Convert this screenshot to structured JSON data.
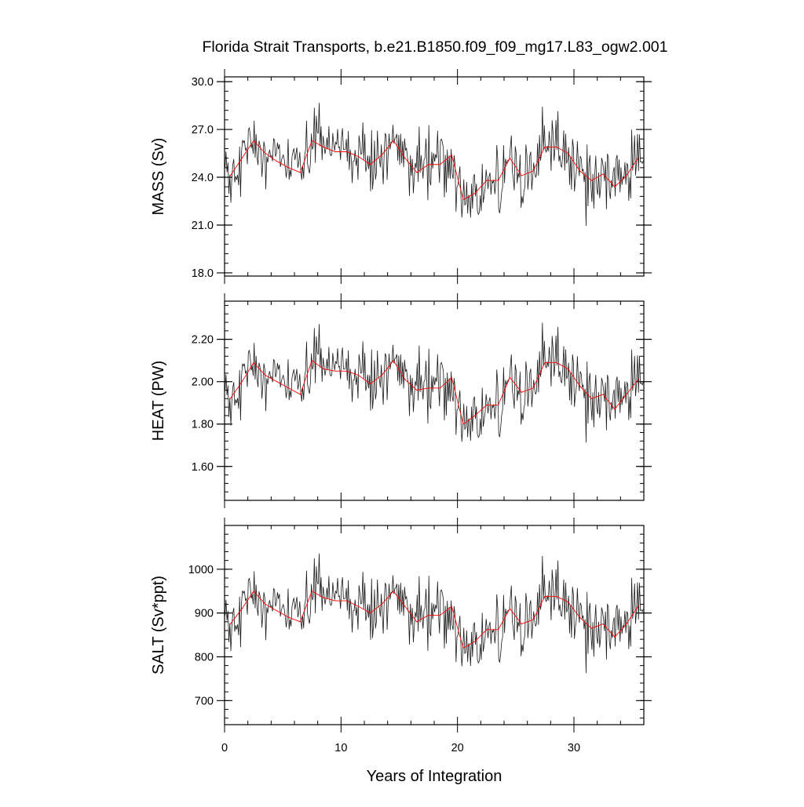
{
  "chart_data": {
    "type": "line",
    "title": "Florida Strait Transports, b.e21.B1850.f09_f09_mg17.L83_ogw2.001",
    "xlabel": "Years of Integration",
    "xlim": [
      0,
      36
    ],
    "xticks": [
      "0",
      "10",
      "20",
      "30"
    ],
    "series_description_colors": {
      "monthly": "#1a1a1a",
      "annual": "#ff0000"
    },
    "panels": [
      {
        "key": "mass",
        "ylabel": "MASS (Sv)",
        "ylim": [
          17.8,
          30.3
        ],
        "yticks": [
          "30.0",
          "27.0",
          "24.0",
          "21.0",
          "18.0"
        ],
        "annual_x": [
          0.5,
          1.5,
          2.5,
          3.5,
          4.5,
          5.5,
          6.5,
          7.5,
          8.5,
          9.5,
          10.5,
          11.5,
          12.5,
          13.5,
          14.5,
          15.5,
          16.5,
          17.5,
          18.5,
          19.5,
          20.5,
          21.5,
          22.5,
          23.5,
          24.5,
          25.5,
          26.5,
          27.5,
          28.5,
          29.5,
          30.5,
          31.5,
          32.5,
          33.5,
          34.5,
          35.5
        ],
        "annual_values": [
          24.1,
          25.2,
          26.3,
          25.5,
          25.0,
          24.6,
          24.3,
          26.3,
          25.9,
          25.6,
          25.6,
          25.3,
          24.8,
          25.4,
          26.3,
          25.2,
          24.3,
          24.8,
          24.8,
          25.4,
          22.6,
          23.0,
          23.8,
          23.8,
          25.2,
          24.1,
          24.4,
          25.9,
          25.9,
          25.5,
          24.4,
          23.8,
          24.2,
          23.4,
          24.1,
          25.2
        ]
      },
      {
        "key": "heat",
        "ylabel": "HEAT (PW)",
        "ylim": [
          1.44,
          2.38
        ],
        "yticks": [
          "2.20",
          "2.00",
          "1.80",
          "1.60"
        ],
        "annual_x": [
          0.5,
          1.5,
          2.5,
          3.5,
          4.5,
          5.5,
          6.5,
          7.5,
          8.5,
          9.5,
          10.5,
          11.5,
          12.5,
          13.5,
          14.5,
          15.5,
          16.5,
          17.5,
          18.5,
          19.5,
          20.5,
          21.5,
          22.5,
          23.5,
          24.5,
          25.5,
          26.5,
          27.5,
          28.5,
          29.5,
          30.5,
          31.5,
          32.5,
          33.5,
          34.5,
          35.5
        ],
        "annual_values": [
          1.92,
          2.0,
          2.09,
          2.03,
          2.0,
          1.97,
          1.94,
          2.1,
          2.06,
          2.05,
          2.05,
          2.03,
          1.99,
          2.03,
          2.1,
          2.01,
          1.96,
          1.97,
          1.97,
          2.02,
          1.8,
          1.84,
          1.89,
          1.89,
          2.02,
          1.95,
          1.97,
          2.09,
          2.09,
          2.06,
          1.98,
          1.92,
          1.94,
          1.87,
          1.94,
          2.01
        ]
      },
      {
        "key": "salt",
        "ylabel": "SALT (Sv*ppt)",
        "ylim": [
          645,
          1100
        ],
        "yticks": [
          "1000",
          "900",
          "800",
          "700"
        ],
        "annual_x": [
          0.5,
          1.5,
          2.5,
          3.5,
          4.5,
          5.5,
          6.5,
          7.5,
          8.5,
          9.5,
          10.5,
          11.5,
          12.5,
          13.5,
          14.5,
          15.5,
          16.5,
          17.5,
          18.5,
          19.5,
          20.5,
          21.5,
          22.5,
          23.5,
          24.5,
          25.5,
          26.5,
          27.5,
          28.5,
          29.5,
          30.5,
          31.5,
          32.5,
          33.5,
          34.5,
          35.5
        ],
        "annual_values": [
          875,
          910,
          950,
          920,
          905,
          890,
          880,
          950,
          935,
          928,
          928,
          915,
          900,
          920,
          950,
          915,
          880,
          895,
          895,
          915,
          820,
          835,
          862,
          862,
          910,
          875,
          885,
          938,
          938,
          925,
          890,
          865,
          875,
          845,
          875,
          915
        ]
      }
    ]
  }
}
